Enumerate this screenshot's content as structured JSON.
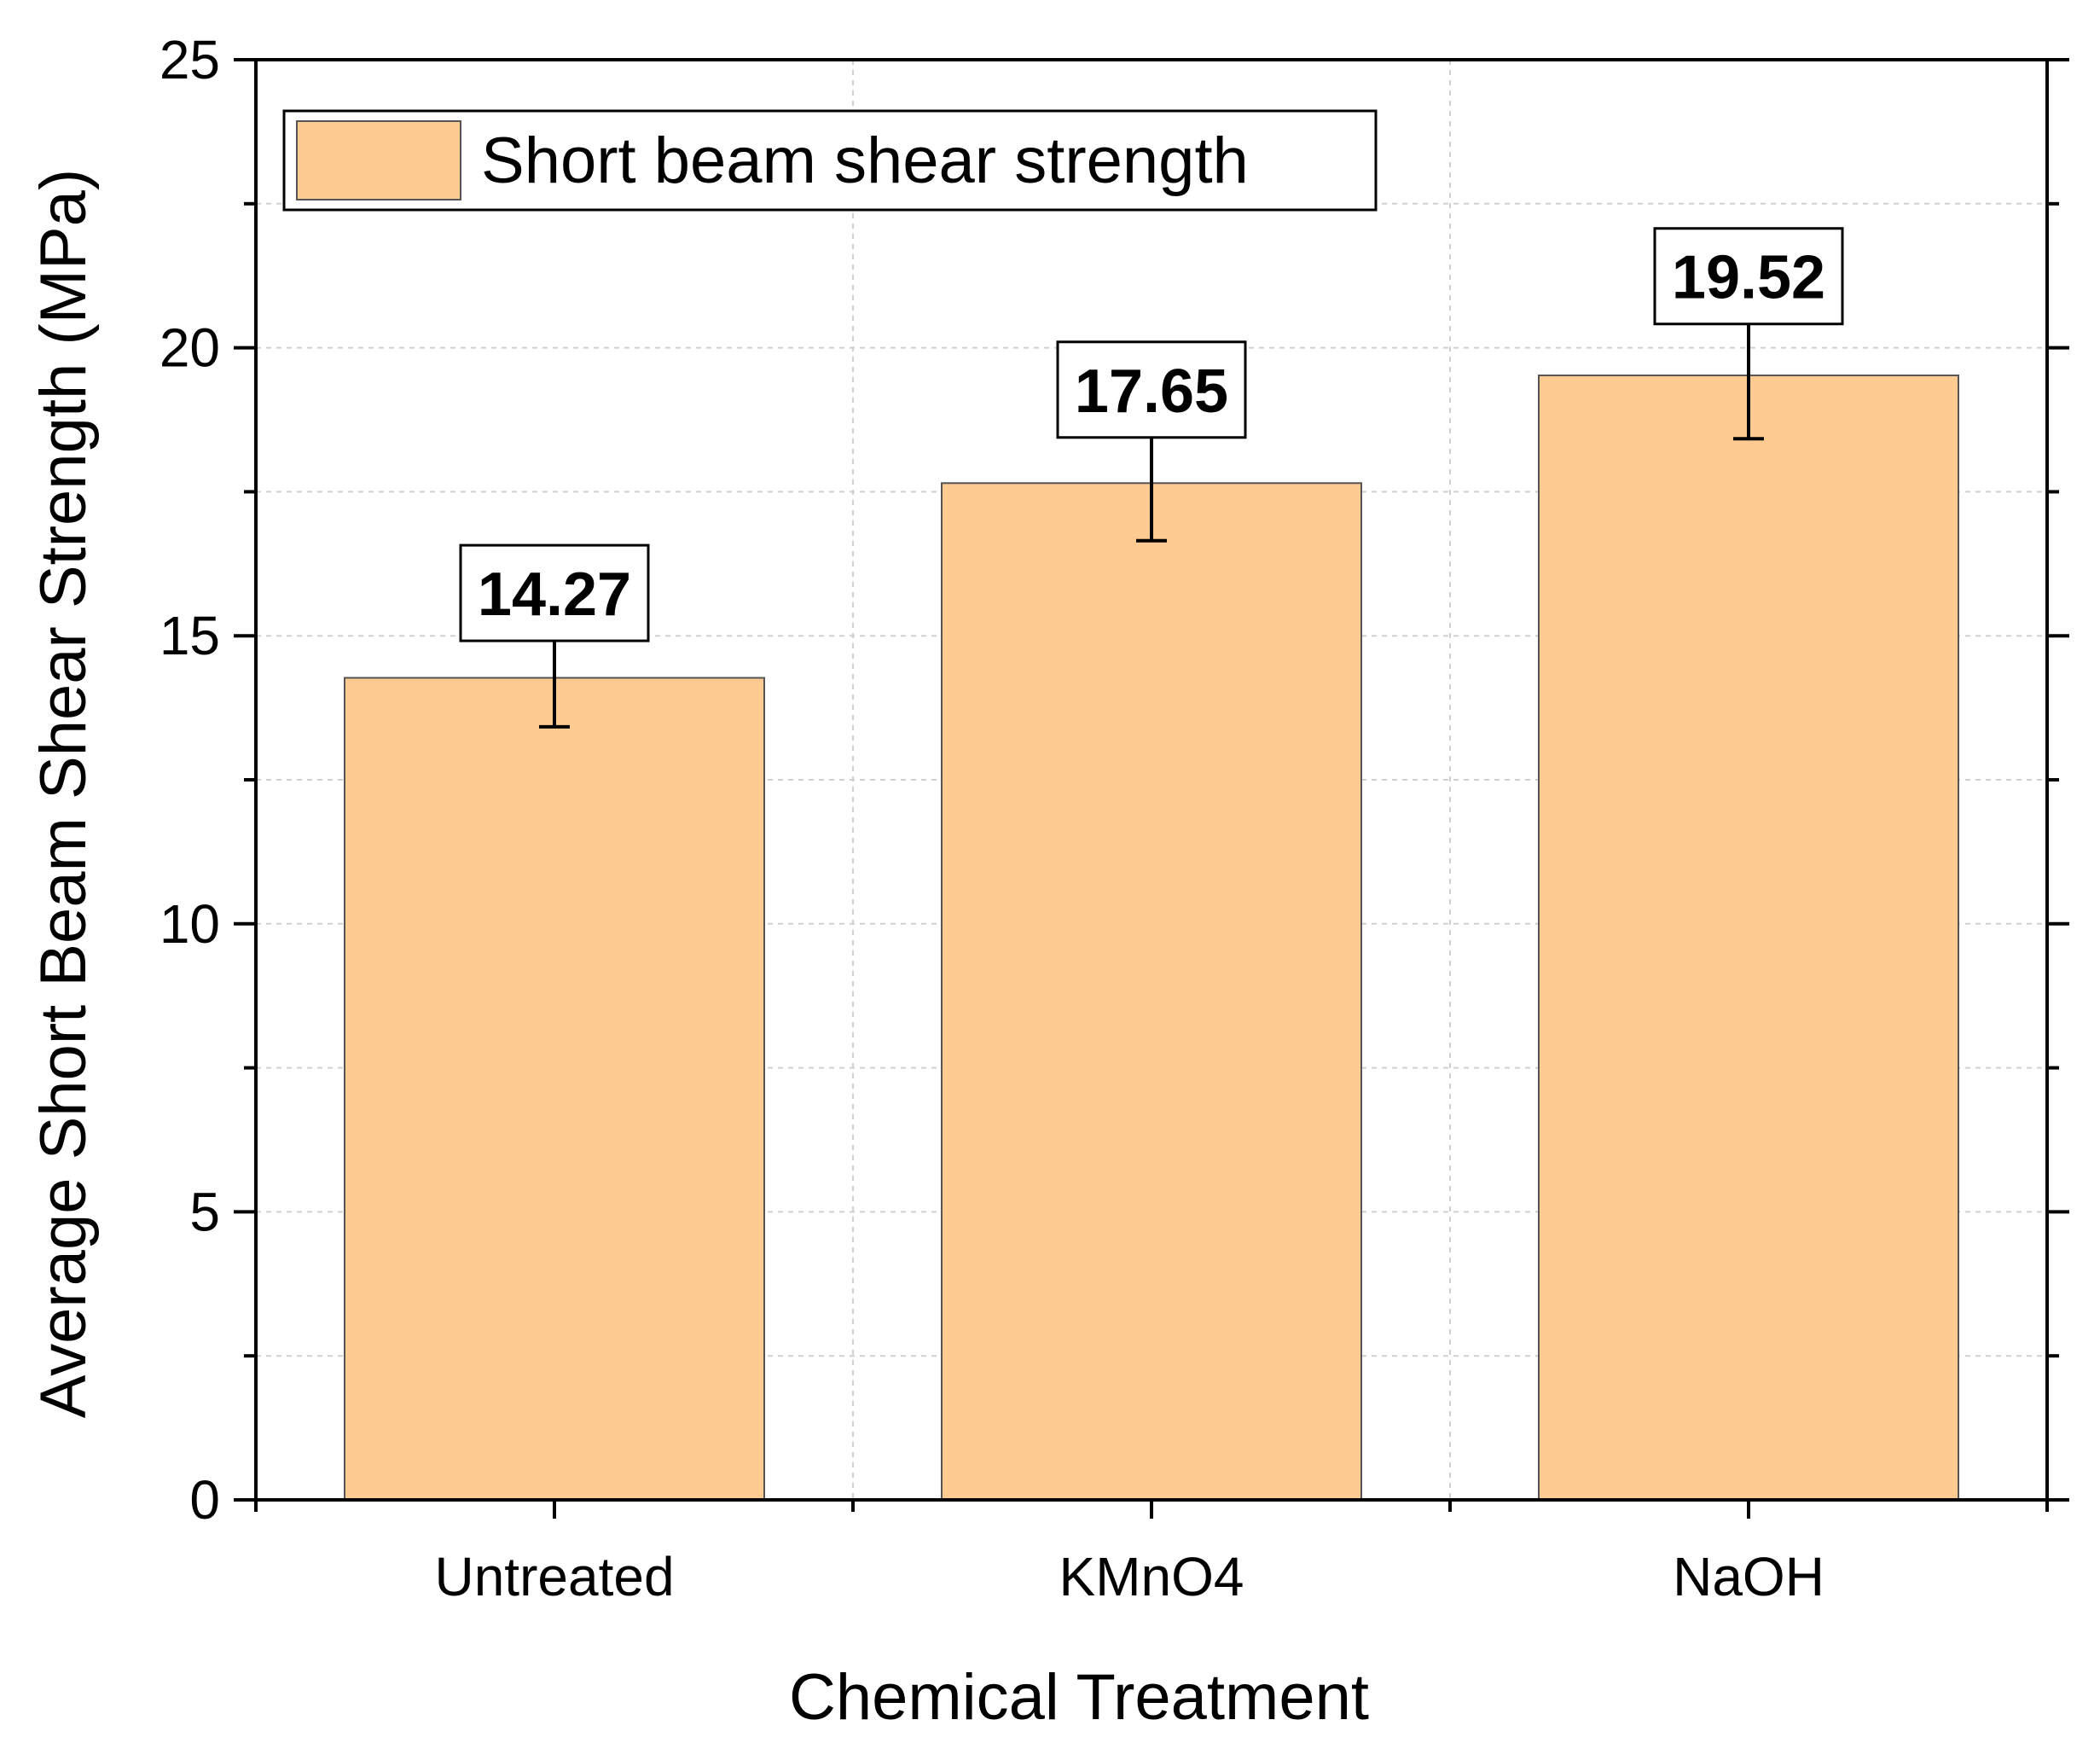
{
  "chart_data": {
    "type": "bar",
    "title": "",
    "xlabel": "Chemical Treatment",
    "ylabel": "Average Short Beam Shear Strength (MPa)",
    "categories": [
      "Untreated",
      "KMnO4",
      "NaOH"
    ],
    "series": [
      {
        "name": "Short beam shear strength",
        "values": [
          14.27,
          17.65,
          19.52
        ],
        "errors": [
          0.85,
          1.0,
          1.1
        ],
        "data_labels": [
          "14.27",
          "17.65",
          "19.52"
        ],
        "color": "#fdcb92"
      }
    ],
    "ylim": [
      0,
      25
    ],
    "yticks": [
      0,
      5,
      10,
      15,
      20,
      25
    ],
    "ytick_labels": [
      "0",
      "5",
      "10",
      "15",
      "20",
      "25"
    ],
    "grid": true,
    "legend": "top-left"
  },
  "colors": {
    "bar_fill": "#fdcb92",
    "axis": "#000000",
    "grid": "#d0d0d0"
  }
}
